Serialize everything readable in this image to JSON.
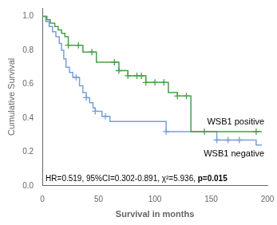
{
  "chart_data": {
    "type": "line",
    "xlabel": "Survival in months",
    "ylabel": "Cumulative Survival",
    "xlim": [
      0,
      200
    ],
    "ylim": [
      0.0,
      1.05
    ],
    "xticks": [
      0,
      50,
      100,
      150,
      200
    ],
    "yticks": [
      {
        "value": 0.0,
        "label": "0.0"
      },
      {
        "value": 0.2,
        "label": "0.2"
      },
      {
        "value": 0.4,
        "label": "0.4"
      },
      {
        "value": 0.6,
        "label": "0.6"
      },
      {
        "value": 0.8,
        "label": "0.8"
      },
      {
        "value": 1.0,
        "label": "1.0"
      }
    ],
    "grid": false,
    "annotation": "HR=0.519, 95%CI=0.302-0.891, χ²=5.936, ",
    "annotation_bold": "p=0.015",
    "series": [
      {
        "name": "WSB1 positive",
        "color": "#4a9e4a",
        "line_style": "step",
        "x": [
          0,
          4,
          7,
          11,
          14,
          17,
          20,
          23,
          26,
          29,
          32,
          36,
          40,
          44,
          48,
          52,
          56,
          60,
          64,
          68,
          72,
          76,
          80,
          84,
          88,
          92,
          96,
          100,
          104,
          108,
          112,
          116,
          120,
          124,
          128,
          132,
          136,
          140,
          144,
          148,
          152,
          190,
          195
        ],
        "values": [
          1.0,
          0.98,
          0.96,
          0.94,
          0.92,
          0.9,
          0.88,
          0.83,
          0.83,
          0.83,
          0.83,
          0.79,
          0.79,
          0.79,
          0.73,
          0.73,
          0.73,
          0.73,
          0.73,
          0.68,
          0.68,
          0.65,
          0.65,
          0.65,
          0.65,
          0.61,
          0.61,
          0.61,
          0.61,
          0.61,
          0.55,
          0.55,
          0.53,
          0.53,
          0.53,
          0.32,
          0.32,
          0.32,
          0.32,
          0.32,
          0.32,
          0.32,
          0.32
        ],
        "censored": {
          "marker": "cross",
          "x": [
            23,
            32,
            44,
            64,
            68,
            76,
            84,
            88,
            92,
            100,
            108,
            120,
            128,
            144,
            190
          ],
          "values": [
            0.83,
            0.83,
            0.79,
            0.73,
            0.68,
            0.65,
            0.65,
            0.65,
            0.61,
            0.61,
            0.61,
            0.53,
            0.53,
            0.32,
            0.32
          ]
        }
      },
      {
        "name": "WSB1 negative",
        "color": "#7b9fd4",
        "line_style": "step",
        "x": [
          0,
          3,
          6,
          9,
          12,
          15,
          17,
          19,
          21,
          24,
          27,
          30,
          33,
          36,
          39,
          42,
          45,
          47,
          50,
          53,
          56,
          60,
          65,
          70,
          90,
          100,
          110,
          120,
          125,
          150,
          155,
          160,
          165,
          170,
          175,
          190,
          195
        ],
        "values": [
          1.0,
          0.97,
          0.94,
          0.91,
          0.88,
          0.84,
          0.8,
          0.75,
          0.7,
          0.67,
          0.64,
          0.64,
          0.59,
          0.55,
          0.52,
          0.49,
          0.46,
          0.44,
          0.44,
          0.41,
          0.41,
          0.38,
          0.38,
          0.38,
          0.38,
          0.38,
          0.32,
          0.32,
          0.32,
          0.32,
          0.27,
          0.27,
          0.27,
          0.27,
          0.27,
          0.24,
          0.24
        ],
        "censored": {
          "marker": "cross",
          "x": [
            30,
            39,
            47,
            56,
            110,
            155,
            165,
            175
          ],
          "values": [
            0.64,
            0.52,
            0.44,
            0.41,
            0.32,
            0.27,
            0.27,
            0.27
          ]
        }
      }
    ]
  }
}
